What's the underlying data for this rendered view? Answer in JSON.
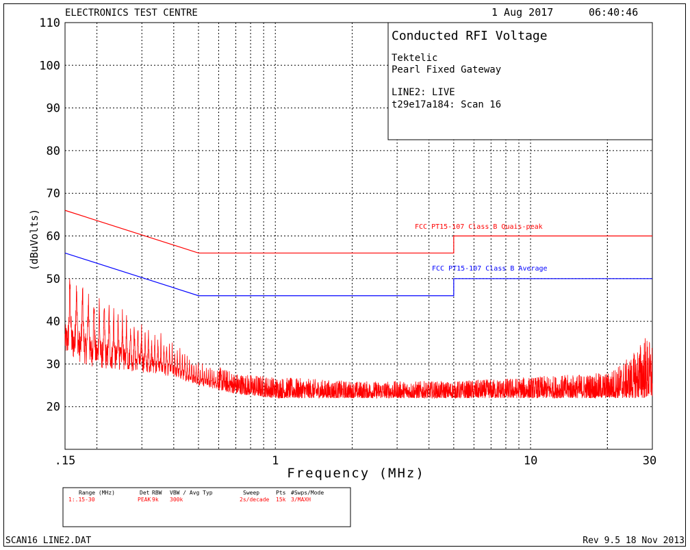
{
  "header": {
    "lab": "ELECTRONICS TEST CENTRE",
    "date": "1 Aug 2017",
    "time": "06:40:46"
  },
  "info": {
    "title": "Conducted RFI Voltage",
    "line1": "Tektelic",
    "line2": "Pearl Fixed Gateway",
    "line3": "LINE2: LIVE",
    "line4": "t29e17a184: Scan 16"
  },
  "settings": {
    "headers": {
      "range": "Range (MHz)",
      "det": "Det",
      "rbw": "RBW",
      "vbw": "VBW / Avg Typ",
      "sweep": "Sweep",
      "pts": "Pts",
      "swps": "#Swps/Mode"
    },
    "values": {
      "range": "1:.15-30",
      "det": "PEAK",
      "rbw": "9k",
      "vbw": "300k",
      "sweep": "2s/decade",
      "pts": "15k",
      "swps": "3/MAXH"
    }
  },
  "footer": {
    "file": "SCAN16 LINE2.DAT",
    "rev": "Rev 9.5 18 Nov 2013"
  },
  "colors": {
    "scan": "#ff0000",
    "quasi_peak_limit": "#ff0000",
    "average_limit": "#0000ff",
    "grid": "#000000"
  },
  "chart_data": {
    "type": "line",
    "title": "Conducted RFI Voltage",
    "xlabel": "Frequency (MHz)",
    "ylabel": "(dBuVolts)",
    "x_scale": "log",
    "xlim": [
      0.15,
      30
    ],
    "ylim": [
      10,
      110
    ],
    "grid": true,
    "x_tick_labels": [
      {
        "value": 0.15,
        "label": ".15"
      },
      {
        "value": 1,
        "label": "1"
      },
      {
        "value": 10,
        "label": "10"
      },
      {
        "value": 30,
        "label": "30"
      }
    ],
    "y_ticks": [
      20,
      30,
      40,
      50,
      60,
      70,
      80,
      90,
      100,
      110
    ],
    "series": [
      {
        "name": "FCC PT15-107 Class B Quais-peak",
        "color": "#ff0000",
        "x": [
          0.15,
          0.5,
          5,
          5,
          30
        ],
        "y": [
          66,
          56,
          56,
          60,
          60
        ]
      },
      {
        "name": "FCC PT15-107 Class B Average",
        "color": "#0000ff",
        "x": [
          0.15,
          0.5,
          5,
          5,
          30
        ],
        "y": [
          56,
          46,
          46,
          50,
          50
        ]
      },
      {
        "color": "#ff0000",
        "style": "noisy_peak_scan",
        "envelope_x": [
          0.15,
          0.16,
          0.2,
          0.3,
          0.4,
          0.5,
          0.7,
          1,
          2,
          5,
          10,
          20,
          25,
          28,
          30
        ],
        "envelope_peak": [
          53,
          54,
          48,
          41,
          35,
          31,
          28,
          27,
          26,
          26,
          27,
          28,
          32,
          37,
          35
        ],
        "envelope_floor": [
          32,
          31,
          29,
          28,
          27,
          25,
          23,
          22,
          22,
          22,
          22,
          22,
          22,
          22,
          22
        ]
      }
    ]
  }
}
